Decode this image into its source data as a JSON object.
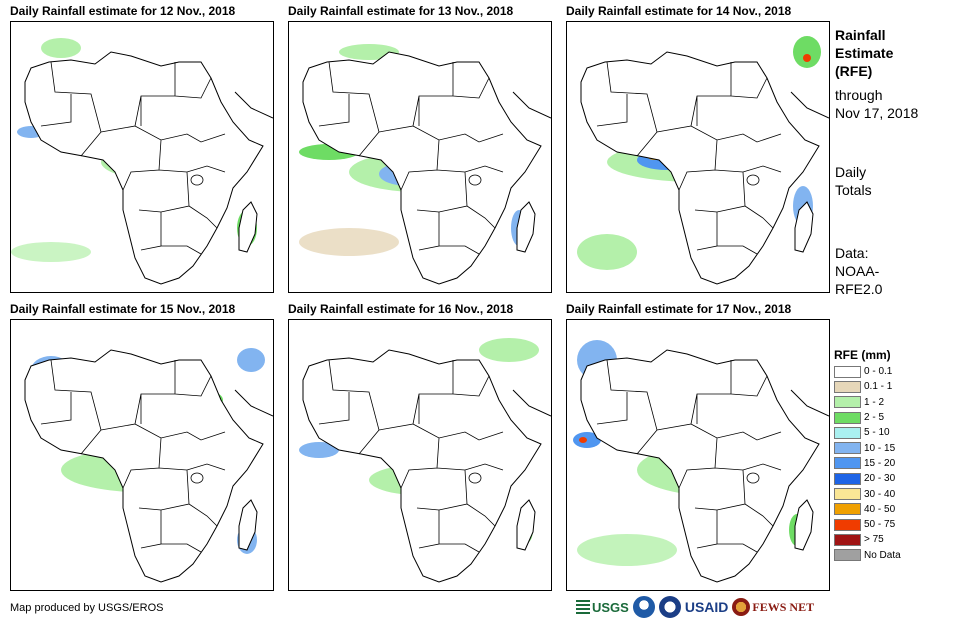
{
  "panels": [
    {
      "title": "Daily Rainfall estimate for 12 Nov., 2018"
    },
    {
      "title": "Daily Rainfall estimate for 13 Nov., 2018"
    },
    {
      "title": "Daily Rainfall estimate for 14 Nov., 2018"
    },
    {
      "title": "Daily Rainfall estimate for 15 Nov., 2018"
    },
    {
      "title": "Daily Rainfall estimate for 16 Nov., 2018"
    },
    {
      "title": "Daily Rainfall estimate for 17 Nov., 2018"
    }
  ],
  "sidebar": {
    "title_lines": [
      "Rainfall",
      "Estimate",
      "(RFE)"
    ],
    "through_lines": [
      "through",
      "Nov 17, 2018"
    ],
    "daily_lines": [
      "Daily",
      "Totals"
    ],
    "data_lines": [
      "Data:",
      "NOAA-",
      "RFE2.0"
    ]
  },
  "legend": {
    "title": "RFE (mm)",
    "items": [
      {
        "label": "0 - 0.1",
        "color": "#ffffff"
      },
      {
        "label": "0.1 - 1",
        "color": "#e6d7b9"
      },
      {
        "label": "1 - 2",
        "color": "#b4f0aa"
      },
      {
        "label": "2 - 5",
        "color": "#6edc64"
      },
      {
        "label": "5 - 10",
        "color": "#aaf0f0"
      },
      {
        "label": "10 - 15",
        "color": "#82b4f0"
      },
      {
        "label": "15 - 20",
        "color": "#5096f0"
      },
      {
        "label": "20 - 30",
        "color": "#1e64e6"
      },
      {
        "label": "30 - 40",
        "color": "#fae696"
      },
      {
        "label": "40 - 50",
        "color": "#f0a000"
      },
      {
        "label": "50 - 75",
        "color": "#f03c00"
      },
      {
        "label": "> 75",
        "color": "#a01414"
      },
      {
        "label": "No Data",
        "color": "#a0a0a0"
      }
    ]
  },
  "footer": {
    "credit": "Map produced by USGS/EROS",
    "logos": {
      "usgs": "USGS",
      "usaid": "USAID",
      "fews": "FEWS NET"
    }
  }
}
